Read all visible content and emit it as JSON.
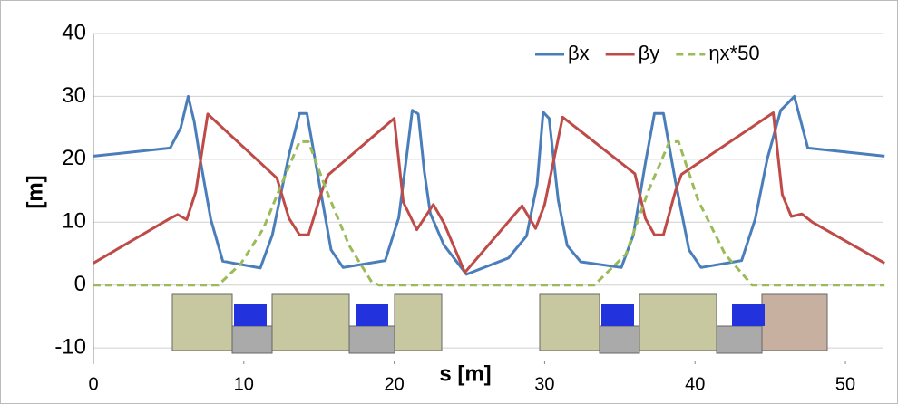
{
  "chart_data": {
    "type": "line",
    "xlabel": "s [m]",
    "ylabel": "[m]",
    "xlim": [
      0,
      52.5
    ],
    "ylim": [
      -12,
      40
    ],
    "xticks": [
      0,
      10,
      20,
      30,
      40,
      50
    ],
    "yticks": [
      -10,
      0,
      10,
      20,
      30,
      40
    ],
    "grid": true,
    "legend": "upper right",
    "series": [
      {
        "name": "βx",
        "color": "#4a7ebb",
        "dash": false,
        "x": [
          0,
          5.1,
          5.8,
          6.3,
          6.7,
          7.1,
          7.8,
          8.6,
          11.1,
          11.9,
          13,
          13.7,
          14.2,
          15,
          15.8,
          16.6,
          19.4,
          20.3,
          20.8,
          21.2,
          21.6,
          22,
          22.4,
          23.3,
          24.8,
          27.6,
          28.8,
          29.5,
          29.9,
          30.3,
          30.9,
          31.5,
          32.4,
          35.1,
          35.9,
          36.7,
          37.3,
          37.9,
          38.7,
          39.6,
          40.4,
          43.1,
          44,
          44.8,
          45.7,
          46.2,
          46.6,
          47.5,
          52.6
        ],
        "values": [
          20.5,
          21.8,
          25,
          30,
          26,
          20,
          10.5,
          3.8,
          2.7,
          8,
          20.7,
          27.3,
          27.3,
          16.4,
          5.6,
          2.8,
          3.9,
          10.7,
          20,
          27.8,
          27.2,
          18,
          11.4,
          6.4,
          1.7,
          4.3,
          7.8,
          16,
          27.5,
          26.5,
          13.5,
          6.3,
          3.7,
          2.8,
          8,
          19.4,
          27.3,
          27.3,
          16.4,
          5.6,
          2.8,
          3.9,
          10.5,
          20,
          27.8,
          29,
          30,
          21.8,
          20.5
        ]
      },
      {
        "name": "βy",
        "color": "#be4b48",
        "dash": false,
        "x": [
          0,
          5.1,
          5.6,
          6.2,
          6.8,
          7.6,
          12.2,
          13,
          13.7,
          14.3,
          15.2,
          15.6,
          20,
          20.6,
          21.5,
          22.6,
          23.3,
          24.7,
          28.5,
          29.4,
          30,
          31.2,
          36,
          36.7,
          37.3,
          37.9,
          38.7,
          39.1,
          45.2,
          45.8,
          46.4,
          47.1,
          47.8,
          52.6
        ],
        "values": [
          3.5,
          10.6,
          11.2,
          10.4,
          14.8,
          27.2,
          17,
          10.6,
          8,
          8,
          15,
          17.5,
          26.5,
          13.2,
          8.8,
          12.8,
          9.9,
          2,
          12.6,
          9,
          12.8,
          26.7,
          17.7,
          10.6,
          8,
          8,
          15,
          17.6,
          27.4,
          14.4,
          10.9,
          11.3,
          10,
          3.5
        ]
      },
      {
        "name": "ηx*50",
        "color": "#9bbb59",
        "dash": true,
        "x": [
          0,
          8.3,
          9.8,
          11.3,
          12.5,
          13.7,
          14.3,
          15.5,
          17,
          18.5,
          19,
          33.3,
          35.4,
          36.9,
          38.3,
          38.9,
          40.2,
          42,
          43.8,
          52.6
        ],
        "values": [
          0,
          0,
          3.4,
          9,
          16,
          22.8,
          22.8,
          15,
          6.3,
          0.5,
          0,
          0,
          4.9,
          15,
          22.8,
          22.8,
          13.5,
          4.9,
          0,
          0
        ]
      }
    ]
  }
}
